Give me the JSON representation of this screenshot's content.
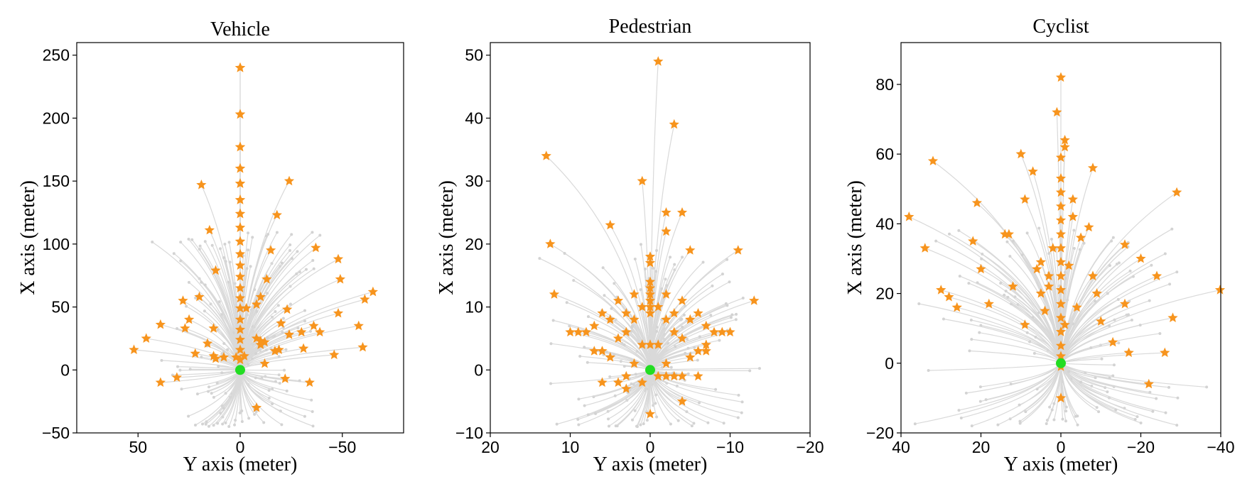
{
  "chart_data": [
    {
      "type": "scatter",
      "title": "Vehicle",
      "xlabel": "Y axis (meter)",
      "ylabel": "X axis (meter)",
      "xlim": [
        80,
        -80
      ],
      "ylim": [
        -50,
        260
      ],
      "xticks": [
        50,
        0,
        -50
      ],
      "yticks": [
        -50,
        0,
        50,
        100,
        150,
        200,
        250
      ],
      "xtick_labels": [
        "50",
        "0",
        "−50"
      ],
      "ytick_labels": [
        "−50",
        "0",
        "50",
        "100",
        "150",
        "200",
        "250"
      ],
      "origin": [
        0,
        0
      ],
      "trajectory_seed": 11,
      "trajectory_count": 170,
      "trajectory_spread": {
        "x": 45,
        "y_min": -45,
        "y_max": 110
      },
      "endpoints_x": [
        0,
        0,
        0,
        0,
        0,
        0,
        0,
        0,
        0,
        0,
        0,
        0,
        0,
        0,
        0,
        0,
        0,
        0,
        0,
        0,
        0,
        0,
        0,
        0,
        0,
        0,
        0,
        0,
        0,
        19,
        -24,
        -18,
        -15,
        -13,
        -8,
        -20,
        -17,
        15,
        12,
        -10,
        -37,
        -49,
        -61,
        -48,
        -36,
        -24,
        -10,
        -30,
        -19,
        -12,
        -8,
        -22,
        -34,
        -46,
        -60,
        -23,
        -12,
        -3,
        -8,
        -10,
        -48,
        -65,
        -58,
        -39,
        -31,
        13,
        13,
        16,
        20,
        25,
        31,
        28,
        39,
        46,
        52,
        39,
        27,
        8,
        -2,
        2,
        22,
        12
      ],
      "endpoints_y": [
        240,
        203,
        177,
        160,
        148,
        135,
        124,
        113,
        102,
        92,
        83,
        74,
        65,
        57,
        49,
        40,
        32,
        24,
        16,
        8,
        240,
        203,
        177,
        160,
        148,
        135,
        124,
        113,
        102,
        147,
        150,
        123,
        95,
        72,
        52,
        37,
        15,
        111,
        79,
        58,
        97,
        72,
        56,
        45,
        35,
        28,
        23,
        30,
        16,
        5,
        -30,
        -7,
        -10,
        12,
        18,
        48,
        22,
        49,
        25,
        20,
        88,
        62,
        35,
        30,
        17,
        33,
        11,
        21,
        58,
        40,
        -6,
        55,
        36,
        25,
        16,
        -10,
        33,
        10,
        11,
        10,
        13,
        9
      ]
    },
    {
      "type": "scatter",
      "title": "Pedestrian",
      "xlabel": "Y axis (meter)",
      "ylabel": "X axis (meter)",
      "xlim": [
        20,
        -20
      ],
      "ylim": [
        -10,
        52
      ],
      "xticks": [
        20,
        10,
        0,
        -10,
        -20
      ],
      "yticks": [
        -10,
        0,
        10,
        20,
        30,
        40,
        50
      ],
      "xtick_labels": [
        "20",
        "10",
        "0",
        "−10",
        "−20"
      ],
      "ytick_labels": [
        "−10",
        "0",
        "10",
        "20",
        "30",
        "40",
        "50"
      ],
      "origin": [
        0,
        0
      ],
      "trajectory_seed": 23,
      "trajectory_count": 150,
      "trajectory_spread": {
        "x": 15,
        "y_min": -9,
        "y_max": 20
      },
      "endpoints_x": [
        -1,
        -3,
        13,
        12.5,
        12,
        -11,
        -13,
        1,
        -2,
        -4,
        -2,
        5,
        -5,
        0,
        0,
        0,
        0,
        0,
        0,
        0,
        0,
        2,
        -2,
        4,
        -4,
        1,
        -1,
        3,
        -3,
        6,
        -6,
        2,
        -2,
        5,
        -5,
        7,
        -7,
        8,
        -8,
        3,
        -3,
        9,
        -9,
        4,
        -4,
        1,
        -1,
        6,
        -6,
        10,
        -10,
        7,
        -7,
        5,
        -5,
        2,
        -2,
        4,
        -4,
        0,
        3,
        -3,
        1,
        -1,
        -2,
        6,
        -6,
        0,
        -4,
        -7,
        3
      ],
      "endpoints_y": [
        49,
        39,
        34,
        20,
        12,
        19,
        11,
        30,
        25,
        25,
        22,
        23,
        19,
        18,
        17,
        14,
        13,
        12,
        11,
        10,
        9,
        12,
        12,
        11,
        11,
        10,
        10,
        9,
        9,
        9,
        9,
        8,
        8,
        8,
        8,
        7,
        7,
        6,
        6,
        6,
        6,
        6,
        6,
        5,
        5,
        4,
        4,
        3,
        3,
        6,
        6,
        3,
        3,
        2,
        2,
        1,
        1,
        -2,
        -1,
        -7,
        -3,
        -1,
        -2,
        -1,
        -1,
        -2,
        -1,
        4,
        -5,
        4,
        -1
      ]
    },
    {
      "type": "scatter",
      "title": "Cyclist",
      "xlabel": "Y axis (meter)",
      "ylabel": "X axis (meter)",
      "xlim": [
        40,
        -40
      ],
      "ylim": [
        -20,
        92
      ],
      "xticks": [
        40,
        20,
        0,
        -20,
        -40
      ],
      "yticks": [
        -20,
        0,
        20,
        40,
        60,
        80
      ],
      "xtick_labels": [
        "40",
        "20",
        "0",
        "−20",
        "−40"
      ],
      "ytick_labels": [
        "−20",
        "0",
        "20",
        "40",
        "60",
        "80"
      ],
      "origin": [
        0,
        0
      ],
      "trajectory_seed": 37,
      "trajectory_count": 140,
      "trajectory_spread": {
        "x": 40,
        "y_min": -18,
        "y_max": 40
      },
      "endpoints_x": [
        0,
        1,
        -1,
        0,
        0,
        0,
        0,
        0,
        0,
        0,
        0,
        0,
        0,
        0,
        0,
        0,
        0,
        0,
        0,
        0,
        32,
        38,
        21,
        34,
        13,
        20,
        9,
        7,
        -3,
        -8,
        -16,
        -24,
        -29,
        -20,
        -28,
        -40,
        -16,
        -9,
        -4,
        5,
        12,
        3,
        5,
        -5,
        -8,
        -10,
        -13,
        -17,
        -26,
        -22,
        10,
        14,
        18,
        22,
        26,
        28,
        30,
        -2,
        -1,
        3,
        2,
        -3,
        -7,
        6,
        9,
        4,
        -1,
        0
      ],
      "endpoints_y": [
        82,
        72,
        64,
        59,
        53,
        49,
        45,
        41,
        37,
        33,
        29,
        25,
        21,
        17,
        13,
        9,
        5,
        2,
        -1,
        -10,
        58,
        42,
        46,
        33,
        37,
        27,
        47,
        55,
        47,
        56,
        34,
        25,
        49,
        30,
        13,
        21,
        17,
        20,
        16,
        20,
        22,
        22,
        29,
        36,
        25,
        12,
        6,
        3,
        3,
        -6,
        60,
        37,
        17,
        35,
        16,
        19,
        21,
        28,
        62,
        25,
        33,
        42,
        39,
        27,
        11,
        15,
        11,
        -10
      ]
    }
  ]
}
